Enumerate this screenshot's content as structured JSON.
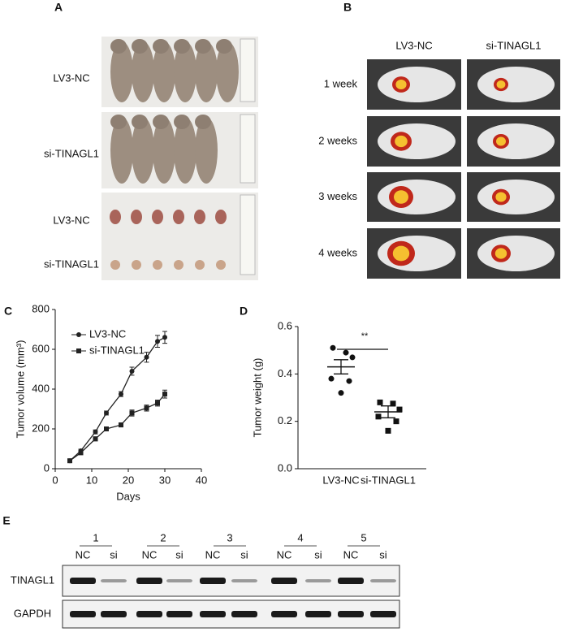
{
  "panels": [
    "A",
    "B",
    "C",
    "D",
    "E"
  ],
  "photos": {
    "labels": [
      "LV3-NC",
      "si-TINAGL1",
      "LV3-NC",
      "si-TINAGL1"
    ]
  },
  "imaging": {
    "columns": [
      "LV3-NC",
      "si-TINAGL1"
    ],
    "rows": [
      "1 week",
      "2 weeks",
      "3 weeks",
      "4 weeks"
    ]
  },
  "chart_data": [
    {
      "type": "line",
      "xlabel": "Days",
      "ylabel": "Tumor volume (mm³)",
      "xlim": [
        0,
        40
      ],
      "xticks": [
        0,
        10,
        20,
        30,
        40
      ],
      "ylim": [
        0,
        800
      ],
      "yticks": [
        0,
        200,
        400,
        600,
        800
      ],
      "x": [
        4,
        7,
        11,
        14,
        18,
        21,
        25,
        28,
        30
      ],
      "series": [
        {
          "name": "LV3-NC",
          "color": "#222222",
          "marker": "circle",
          "values": [
            40,
            90,
            185,
            280,
            375,
            490,
            560,
            640,
            660
          ],
          "errors": [
            5,
            8,
            10,
            10,
            12,
            20,
            25,
            30,
            30
          ]
        },
        {
          "name": "si-TINAGL1",
          "color": "#222222",
          "marker": "square",
          "values": [
            40,
            80,
            150,
            200,
            220,
            280,
            305,
            330,
            375
          ],
          "errors": [
            5,
            8,
            10,
            10,
            10,
            15,
            15,
            15,
            20
          ]
        }
      ],
      "legend": "top-left"
    },
    {
      "type": "dot",
      "ylabel": "Tumor weight (g)",
      "annotation": "**",
      "categories": [
        "LV3-NC",
        "si-TINAGL1"
      ],
      "ylim": [
        0,
        0.6
      ],
      "yticks": [
        {
          "value": 0,
          "label": "0.0"
        },
        0.2,
        0.4,
        0.6
      ],
      "groups": [
        {
          "marker": "circle",
          "values": [
            0.51,
            0.49,
            0.47,
            0.38,
            0.37,
            0.32
          ],
          "mean": 0.43,
          "sem": 0.03
        },
        {
          "marker": "square",
          "values": [
            0.28,
            0.275,
            0.25,
            0.22,
            0.2,
            0.16
          ],
          "mean": 0.24,
          "sem": 0.025
        }
      ]
    }
  ],
  "blot": {
    "groups": [
      "1",
      "2",
      "3",
      "4",
      "5"
    ],
    "lanes": [
      "NC",
      "si"
    ],
    "rows": [
      "TINAGL1",
      "GAPDH"
    ]
  }
}
